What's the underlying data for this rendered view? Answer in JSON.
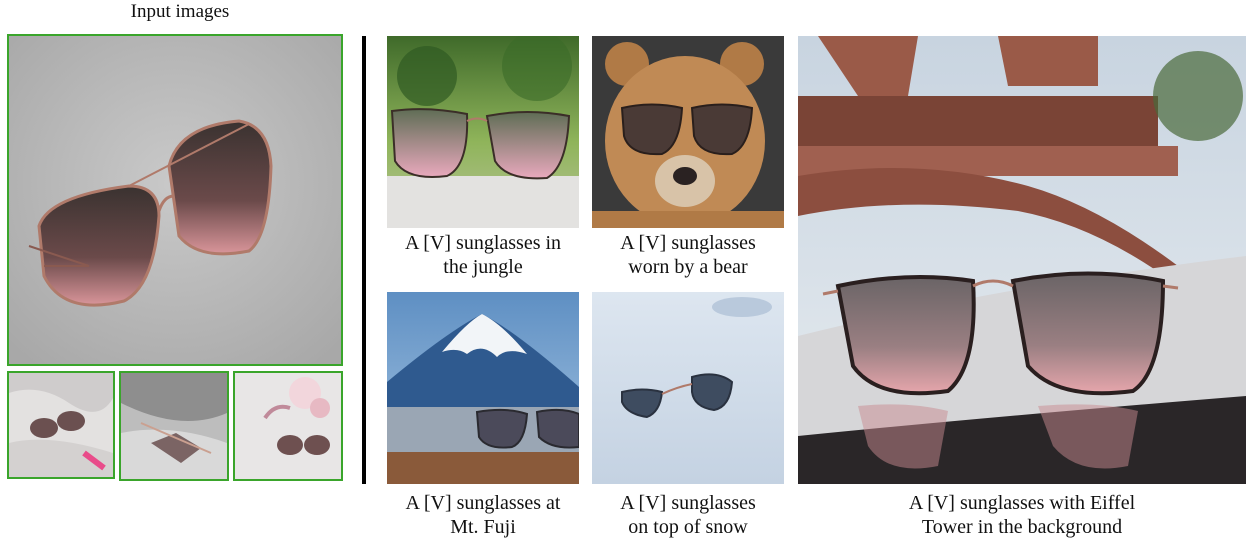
{
  "figure": {
    "input_label": "Input images",
    "captions": {
      "jungle": [
        "A [V] sunglasses in",
        "the jungle"
      ],
      "bear": [
        "A [V] sunglasses",
        "worn by a bear"
      ],
      "fuji": [
        "A [V] sunglasses at",
        "Mt. Fuji"
      ],
      "snow": [
        "A [V] sunglasses",
        "on top of snow"
      ],
      "eiffel": [
        "A [V] sunglasses with Eiffel",
        "Tower in the background"
      ]
    },
    "colors": {
      "input_border": "#3aa52b",
      "divider": "#000000"
    }
  }
}
